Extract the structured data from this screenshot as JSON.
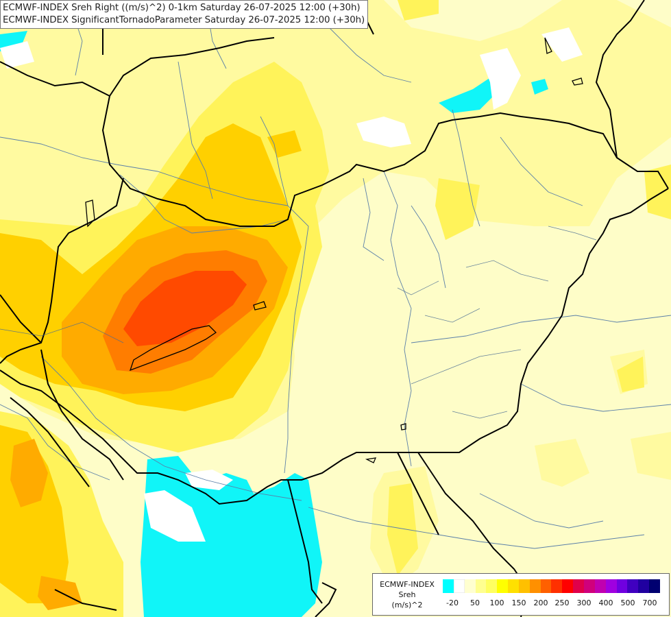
{
  "header": {
    "line1": "ECMWF-INDEX Sreh Right ((m/s)^2) 0-1km Saturday 26-07-2025 12:00 (+30h)",
    "line2": "ECMWF-INDEX SignificantTornadoParameter Saturday 26-07-2025 12:00 (+30h)"
  },
  "legend": {
    "title_line1": "ECMWF-INDEX",
    "title_line2": "Sreh",
    "title_line3": "(m/s)^2",
    "colors": [
      "#00ffff",
      "#ffffff",
      "#ffffd0",
      "#ffff90",
      "#ffff60",
      "#ffff00",
      "#ffe000",
      "#ffc000",
      "#ff9000",
      "#ff6000",
      "#ff3000",
      "#ff0000",
      "#e0004a",
      "#d0007c",
      "#c000b0",
      "#a000e0",
      "#7000e0",
      "#4000c0",
      "#2000a0",
      "#000070"
    ],
    "ticks": [
      "-20",
      "50",
      "100",
      "150",
      "200",
      "250",
      "300",
      "400",
      "500",
      "700"
    ]
  },
  "map": {
    "colors": {
      "background": "#fefdc8",
      "pale_yellow": "#fffaa0",
      "yellow": "#fff35a",
      "gold": "#ffd000",
      "orange": "#ffab00",
      "dark_orange": "#ff7d00",
      "red_orange": "#ff4a00",
      "cyan": "#10f5f8",
      "white": "#ffffff",
      "border": "#000000",
      "river": "#5a7fa8"
    }
  }
}
